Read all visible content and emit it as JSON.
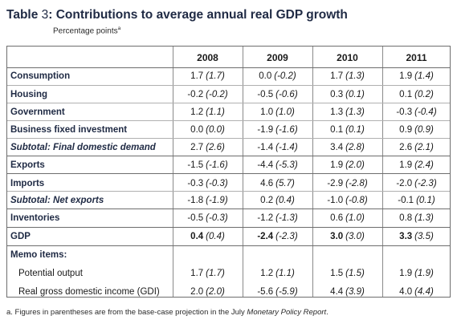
{
  "title": {
    "prefix": "Table ",
    "number": "3",
    "text": ": Contributions to average annual real GDP growth"
  },
  "subtitle": {
    "text": "Percentage points",
    "sup": "a"
  },
  "columns": [
    "2008",
    "2009",
    "2010",
    "2011"
  ],
  "rows": [
    {
      "label": "Consumption",
      "style": "bold",
      "values": [
        [
          "1.7",
          "(1.7)"
        ],
        [
          "0.0",
          "(-0.2)"
        ],
        [
          "1.7",
          "(1.3)"
        ],
        [
          "1.9",
          "(1.4)"
        ]
      ]
    },
    {
      "label": "Housing",
      "style": "bold",
      "values": [
        [
          "-0.2",
          "(-0.2)"
        ],
        [
          "-0.5",
          "(-0.6)"
        ],
        [
          "0.3",
          "(0.1)"
        ],
        [
          "0.1",
          "(0.2)"
        ]
      ]
    },
    {
      "label": "Government",
      "style": "bold",
      "values": [
        [
          "1.2",
          "(1.1)"
        ],
        [
          "1.0",
          "(1.0)"
        ],
        [
          "1.3",
          "(1.3)"
        ],
        [
          "-0.3",
          "(-0.4)"
        ]
      ]
    },
    {
      "label": "Business fixed investment",
      "style": "bold",
      "values": [
        [
          "0.0",
          "(0.0)"
        ],
        [
          "-1.9",
          "(-1.6)"
        ],
        [
          "0.1",
          "(0.1)"
        ],
        [
          "0.9",
          "(0.9)"
        ]
      ]
    },
    {
      "label": "Subtotal: Final domestic demand",
      "style": "sub",
      "values": [
        [
          "2.7",
          "(2.6)"
        ],
        [
          "-1.4",
          "(-1.4)"
        ],
        [
          "3.4",
          "(2.8)"
        ],
        [
          "2.6",
          "(2.1)"
        ]
      ]
    },
    {
      "label": "Exports",
      "style": "bold",
      "values": [
        [
          "-1.5",
          "(-1.6)"
        ],
        [
          "-4.4",
          "(-5.3)"
        ],
        [
          "1.9",
          "(2.0)"
        ],
        [
          "1.9",
          "(2.4)"
        ]
      ]
    },
    {
      "label": "Imports",
      "style": "bold",
      "values": [
        [
          "-0.3",
          "(-0.3)"
        ],
        [
          "4.6",
          "(5.7)"
        ],
        [
          "-2.9",
          "(-2.8)"
        ],
        [
          "-2.0",
          "(-2.3)"
        ]
      ]
    },
    {
      "label": "Subtotal: Net exports",
      "style": "sub",
      "values": [
        [
          "-1.8",
          "(-1.9)"
        ],
        [
          "0.2",
          "(0.4)"
        ],
        [
          "-1.0",
          "(-0.8)"
        ],
        [
          "-0.1",
          "(0.1)"
        ]
      ]
    },
    {
      "label": "Inventories",
      "style": "bold",
      "values": [
        [
          "-0.5",
          "(-0.3)"
        ],
        [
          "-1.2",
          "(-1.3)"
        ],
        [
          "0.6",
          "(1.0)"
        ],
        [
          "0.8",
          "(1.3)"
        ]
      ]
    },
    {
      "label": "GDP",
      "style": "bold",
      "boldvals": true,
      "values": [
        [
          "0.4",
          "(0.4)"
        ],
        [
          "-2.4",
          "(-2.3)"
        ],
        [
          "3.0",
          "(3.0)"
        ],
        [
          "3.3",
          "(3.5)"
        ]
      ]
    },
    {
      "label": "Memo items:",
      "style": "memohead",
      "values": []
    },
    {
      "label": "Potential output",
      "style": "memo",
      "values": [
        [
          "1.7",
          "(1.7)"
        ],
        [
          "1.2",
          "(1.1)"
        ],
        [
          "1.5",
          "(1.5)"
        ],
        [
          "1.9",
          "(1.9)"
        ]
      ]
    },
    {
      "label": "Real gross domestic income (GDI)",
      "style": "memo",
      "values": [
        [
          "2.0",
          "(2.0)"
        ],
        [
          "-5.6",
          "(-5.9)"
        ],
        [
          "4.4",
          "(3.9)"
        ],
        [
          "4.0",
          "(4.4)"
        ]
      ]
    }
  ],
  "footnote": {
    "lead": "a.  Figures in parentheses are from the base-case projection in the July ",
    "italic": "Monetary Policy Report",
    "tail": "."
  }
}
